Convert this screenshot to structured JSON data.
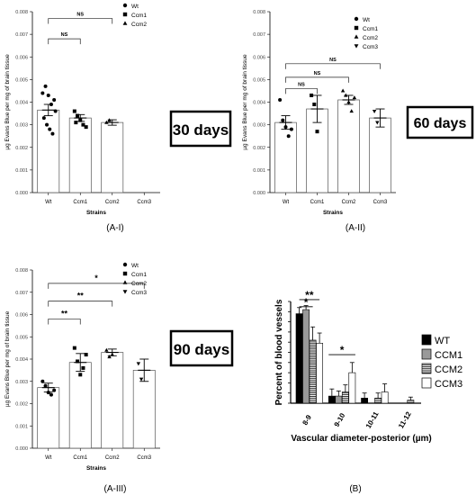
{
  "panel_labels": {
    "a1": "(A-I)",
    "a2": "(A-II)",
    "a3": "(A-III)",
    "b": "(B)"
  },
  "boxes": {
    "a1": "30 days",
    "a2": "60 days",
    "a3": "90 days"
  },
  "chart_data": [
    {
      "id": "a1",
      "type": "bar",
      "categories": [
        "Wt",
        "Ccm1",
        "Ccm2",
        "Ccm3"
      ],
      "values": [
        0.00365,
        0.0033,
        0.0031,
        0
      ],
      "errors": [
        0.00025,
        0.00015,
        0.00012,
        0
      ],
      "points": [
        [
          0.0044,
          0.0047,
          0.0043,
          0.0039,
          0.0041,
          0.0033,
          0.003,
          0.0028,
          0.0026,
          0.0036
        ],
        [
          0.0036,
          0.0034,
          0.0032,
          0.003,
          0.0029,
          0.0031
        ],
        [
          0.0031,
          0.0032
        ],
        []
      ],
      "legend": [
        "Wt",
        "Ccm1",
        "Ccm2"
      ],
      "xlabel": "Strains",
      "ylabel": "µg Evans Blue per mg of brain tissue",
      "ylim": [
        0,
        0.008
      ],
      "yticks": [
        "0.000",
        "0.001",
        "0.002",
        "0.003",
        "0.004",
        "0.005",
        "0.006",
        "0.007",
        "0.008"
      ],
      "annotations": [
        "NS",
        "NS"
      ]
    },
    {
      "id": "a2",
      "type": "bar",
      "categories": [
        "Wt",
        "Ccm1",
        "Ccm2",
        "Ccm3"
      ],
      "values": [
        0.0031,
        0.0037,
        0.0041,
        0.0033
      ],
      "errors": [
        0.0003,
        0.0006,
        0.0002,
        0.0004
      ],
      "points": [
        [
          0.0041,
          0.0032,
          0.0029,
          0.0025,
          0.0028
        ],
        [
          0.0043,
          0.0039,
          0.0027
        ],
        [
          0.0045,
          0.0043,
          0.004,
          0.0036,
          0.0042
        ],
        [
          0.0036,
          0.0031
        ]
      ],
      "legend": [
        "Wt",
        "Ccm1",
        "Ccm2",
        "Ccm3"
      ],
      "xlabel": "Strains",
      "ylabel": "µg Evans Blue per mg of brain tissue",
      "ylim": [
        0,
        0.008
      ],
      "yticks": [
        "0.000",
        "0.001",
        "0.002",
        "0.003",
        "0.004",
        "0.005",
        "0.006",
        "0.007",
        "0.008"
      ],
      "annotations": [
        "NS",
        "NS",
        "NS"
      ]
    },
    {
      "id": "a3",
      "type": "bar",
      "categories": [
        "Wt",
        "Ccm1",
        "Ccm2",
        "Ccm3"
      ],
      "values": [
        0.00272,
        0.00385,
        0.0043,
        0.0035
      ],
      "errors": [
        0.0002,
        0.0004,
        0.00015,
        0.0005
      ],
      "points": [
        [
          0.003,
          0.0028,
          0.0025,
          0.0024,
          0.0026
        ],
        [
          0.0045,
          0.0039,
          0.0033,
          0.0036,
          0.0042
        ],
        [
          0.0044,
          0.0041,
          0.0042
        ],
        [
          0.0038,
          0.0031
        ]
      ],
      "legend": [
        "Wt",
        "Ccm1",
        "Ccm2",
        "Ccm3"
      ],
      "xlabel": "Strains",
      "ylabel": "µg Evans Blue per mg of brain tissue",
      "ylim": [
        0,
        0.008
      ],
      "yticks": [
        "0.000",
        "0.001",
        "0.002",
        "0.003",
        "0.004",
        "0.005",
        "0.006",
        "0.007",
        "0.008"
      ],
      "annotations": [
        "**",
        "**",
        "*"
      ]
    },
    {
      "id": "b",
      "type": "bar",
      "categories": [
        "8-9",
        "9-10",
        "10-11",
        "11-12"
      ],
      "series": [
        {
          "name": "WT",
          "values": [
            88,
            7,
            5,
            0
          ],
          "errors": [
            6,
            7,
            5,
            0
          ]
        },
        {
          "name": "CCM1",
          "values": [
            92,
            7,
            0,
            0
          ],
          "errors": [
            4,
            5,
            0,
            0
          ]
        },
        {
          "name": "CCM2",
          "values": [
            62,
            11,
            5,
            3
          ],
          "errors": [
            13,
            7,
            5,
            3
          ]
        },
        {
          "name": "CCM3",
          "values": [
            59,
            30,
            11,
            0
          ],
          "errors": [
            10,
            10,
            8,
            0
          ]
        }
      ],
      "xlabel": "Vascular diameter-posterior (µm)",
      "ylabel": "Percent of blood vessels",
      "ylim": [
        0,
        100
      ],
      "yticks": [
        "0",
        "10",
        "20",
        "30",
        "40",
        "50",
        "60",
        "70",
        "80",
        "90",
        "100"
      ],
      "annotations": [
        "**",
        "*",
        "*"
      ]
    }
  ]
}
